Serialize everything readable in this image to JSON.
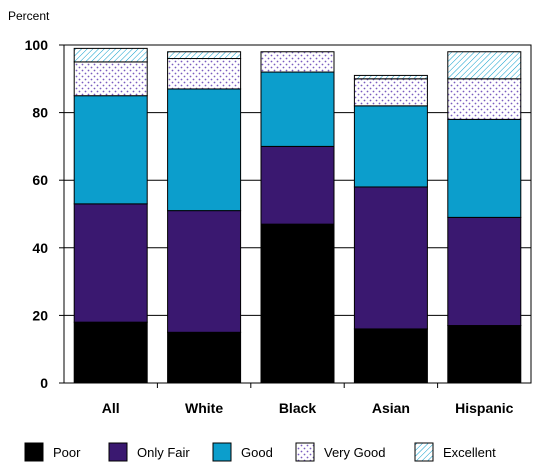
{
  "chart_data": {
    "type": "bar",
    "stacked": true,
    "ylabel": "Percent",
    "ylim": [
      0,
      100
    ],
    "yticks": [
      0,
      20,
      40,
      60,
      80,
      100
    ],
    "grid": "horizontal",
    "legend_position": "bottom",
    "categories": [
      "All",
      "White",
      "Black",
      "Asian",
      "Hispanic"
    ],
    "series": [
      {
        "name": "Poor",
        "color": "#000000",
        "values": [
          18,
          15,
          47,
          16,
          17
        ]
      },
      {
        "name": "Only Fair",
        "color": "#3a1870",
        "values": [
          35,
          36,
          23,
          42,
          32
        ]
      },
      {
        "name": "Good",
        "color": "#0c9ecc",
        "values": [
          32,
          36,
          22,
          24,
          29
        ]
      },
      {
        "name": "Very Good",
        "color": "#b8a0e0",
        "values": [
          10,
          9,
          6,
          8,
          12
        ]
      },
      {
        "name": "Excellent",
        "color": "#8fd0de",
        "values": [
          4,
          2,
          0,
          1,
          8
        ]
      }
    ]
  }
}
